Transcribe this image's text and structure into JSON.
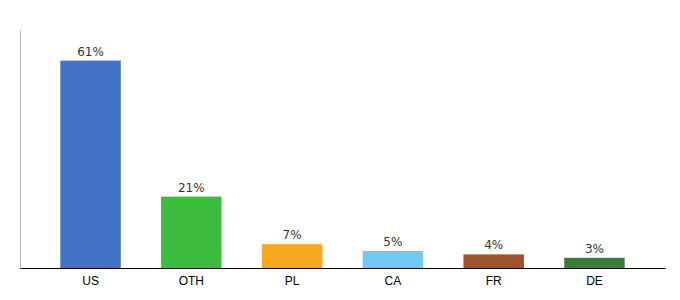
{
  "chart_data": {
    "type": "bar",
    "categories": [
      "US",
      "OTH",
      "PL",
      "CA",
      "FR",
      "DE"
    ],
    "values": [
      61,
      21,
      7,
      5,
      4,
      3
    ],
    "colors": [
      "#4472c4",
      "#3dbb3d",
      "#f5a820",
      "#72c8f5",
      "#a0522d",
      "#3a7d3a"
    ],
    "ylim": [
      0,
      70
    ],
    "data_labels": true,
    "value_labels": [
      "61%",
      "21%",
      "7%",
      "5%",
      "4%",
      "3%"
    ],
    "tick_labels": "x",
    "grid": false
  }
}
